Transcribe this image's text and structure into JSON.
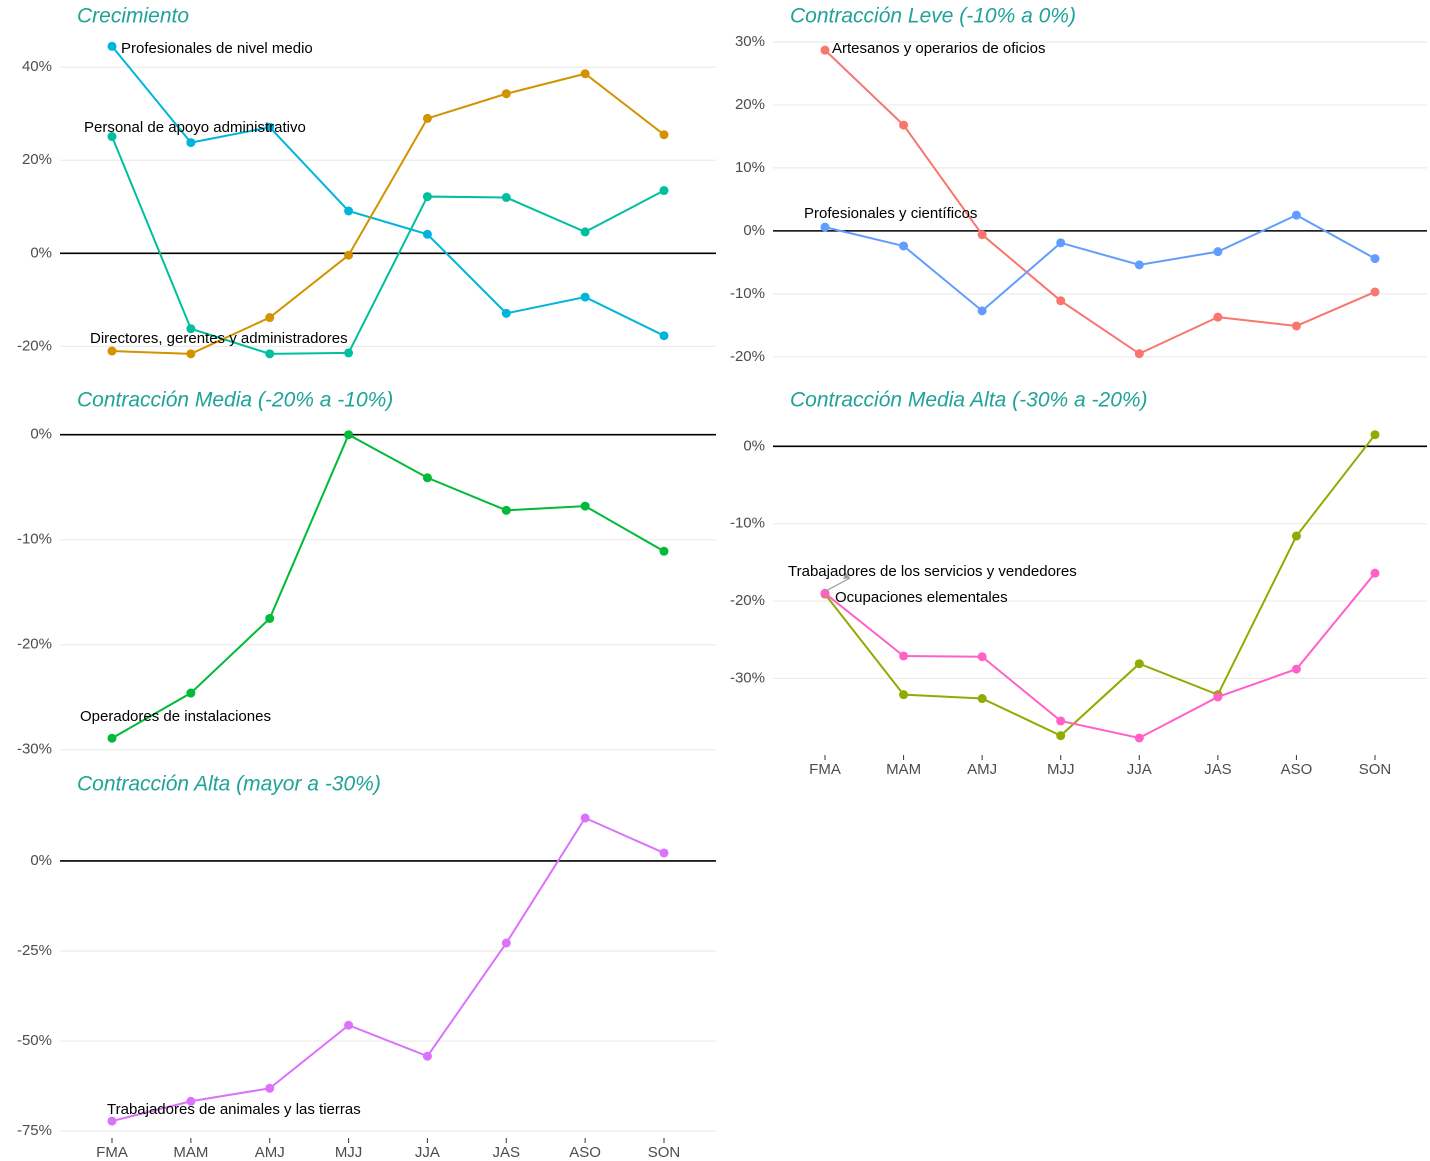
{
  "chart_data": [
    {
      "type": "line",
      "title": "Crecimiento",
      "categories": [
        "FMA",
        "MAM",
        "AMJ",
        "MJJ",
        "JJA",
        "JAS",
        "ASO",
        "SON"
      ],
      "x_tick_labels": false,
      "ylim": [
        -24,
        48
      ],
      "yticks": [
        {
          "value": -20,
          "label": "-20%"
        },
        {
          "value": 0,
          "label": "0%"
        },
        {
          "value": 20,
          "label": "20%"
        },
        {
          "value": 40,
          "label": "40%"
        }
      ],
      "grid": true,
      "series": [
        {
          "name": "Profesionales de nivel medio",
          "color": "#00b5db",
          "values": [
            44.5,
            23.8,
            27.1,
            9.1,
            4.1,
            -12.9,
            -9.4,
            -17.7
          ]
        },
        {
          "name": "Personal de apoyo administrativo",
          "color": "#00bf9f",
          "values": [
            25.1,
            -16.2,
            -21.6,
            -21.4,
            12.2,
            12.0,
            4.6,
            13.5
          ]
        },
        {
          "name": "Directores, gerentes y administradores",
          "color": "#d39200",
          "values": [
            -21.0,
            -21.6,
            -13.8,
            -0.4,
            29.0,
            34.3,
            38.6,
            25.5
          ]
        }
      ]
    },
    {
      "type": "line",
      "title": "Contracción Leve (-10% a 0%)",
      "categories": [
        "FMA",
        "MAM",
        "AMJ",
        "MJJ",
        "JJA",
        "JAS",
        "ASO",
        "SON"
      ],
      "x_tick_labels": false,
      "ylim": [
        -21.3,
        31.9
      ],
      "yticks": [
        {
          "value": -20,
          "label": "-20%"
        },
        {
          "value": -10,
          "label": "-10%"
        },
        {
          "value": 0,
          "label": "0%"
        },
        {
          "value": 10,
          "label": "10%"
        },
        {
          "value": 20,
          "label": "20%"
        },
        {
          "value": 30,
          "label": "30%"
        }
      ],
      "grid": true,
      "series": [
        {
          "name": "Artesanos y operarios de oficios",
          "color": "#f8766d",
          "values": [
            28.7,
            16.8,
            -0.6,
            -11.1,
            -19.5,
            -13.7,
            -15.1,
            -9.7
          ]
        },
        {
          "name": "Profesionales y científicos",
          "color": "#619cff",
          "values": [
            0.6,
            -2.4,
            -12.7,
            -1.9,
            -5.4,
            -3.3,
            2.5,
            -4.4
          ]
        }
      ]
    },
    {
      "type": "line",
      "title": "Contracción Media (-20% a -10%)",
      "categories": [
        "FMA",
        "MAM",
        "AMJ",
        "MJJ",
        "JJA",
        "JAS",
        "ASO",
        "SON"
      ],
      "x_tick_labels": false,
      "ylim": [
        -30.5,
        1.4
      ],
      "yticks": [
        {
          "value": -30,
          "label": "-30%"
        },
        {
          "value": -20,
          "label": "-20%"
        },
        {
          "value": -10,
          "label": "-10%"
        },
        {
          "value": 0,
          "label": "0%"
        }
      ],
      "grid": true,
      "series": [
        {
          "name": "Operadores de instalaciones",
          "color": "#00ba38",
          "values": [
            -28.9,
            -24.6,
            -17.5,
            0,
            -4.1,
            -7.2,
            -6.8,
            -11.1
          ]
        }
      ]
    },
    {
      "type": "line",
      "title": "Contracción Media Alta (-30% a -20%)",
      "categories": [
        "FMA",
        "MAM",
        "AMJ",
        "MJJ",
        "JJA",
        "JAS",
        "ASO",
        "SON"
      ],
      "x_tick_labels": true,
      "ylim": [
        -39.9,
        3.4
      ],
      "yticks": [
        {
          "value": -30,
          "label": "-30%"
        },
        {
          "value": -20,
          "label": "-20%"
        },
        {
          "value": -10,
          "label": "-10%"
        },
        {
          "value": 0,
          "label": "0%"
        }
      ],
      "grid": true,
      "series": [
        {
          "name": "Trabajadores de los servicios y vendedores",
          "color": "#93aa00",
          "values": [
            -19.1,
            -32.1,
            -32.6,
            -37.4,
            -28.1,
            -32.1,
            -11.6,
            1.5
          ]
        },
        {
          "name": "Ocupaciones elementales",
          "color": "#ff61c9",
          "values": [
            -19.0,
            -27.1,
            -27.2,
            -35.5,
            -37.7,
            -32.4,
            -28.8,
            -16.4
          ]
        }
      ]
    },
    {
      "type": "line",
      "title": "Contracción Alta (mayor a -30%)",
      "categories": [
        "FMA",
        "MAM",
        "AMJ",
        "MJJ",
        "JJA",
        "JAS",
        "ASO",
        "SON"
      ],
      "x_tick_labels": true,
      "ylim": [
        -76.9,
        16.9
      ],
      "yticks": [
        {
          "value": -75,
          "label": "-75%"
        },
        {
          "value": -50,
          "label": "-50%"
        },
        {
          "value": -25,
          "label": "-25%"
        },
        {
          "value": 0,
          "label": "0%"
        }
      ],
      "grid": true,
      "series": [
        {
          "name": "Trabajadores de animales y las tierras",
          "color": "#db72fb",
          "values": [
            -72.2,
            -66.7,
            -63.1,
            -45.6,
            -54.2,
            -22.8,
            11.9,
            2.2
          ]
        }
      ]
    }
  ]
}
